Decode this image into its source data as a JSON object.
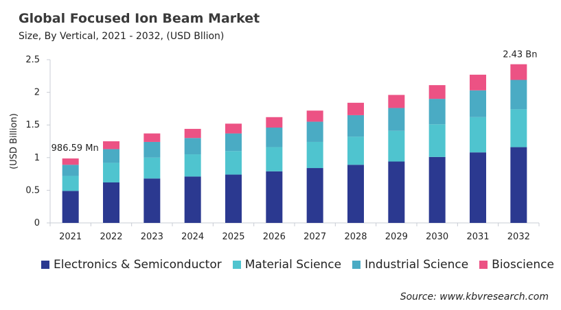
{
  "chart_data": {
    "type": "bar",
    "stacked": true,
    "title": "Global Focused Ion Beam Market",
    "subtitle": "Size, By Vertical, 2021 - 2032, (USD Bllion)",
    "xlabel": "",
    "ylabel": "(USD Billion)",
    "ylim": [
      0,
      2.5
    ],
    "yticks": [
      "0",
      "0.5",
      "1",
      "1.5",
      "2",
      "2.5"
    ],
    "grid": false,
    "legend_position": "bottom",
    "categories": [
      "2021",
      "2022",
      "2023",
      "2024",
      "2025",
      "2026",
      "2027",
      "2028",
      "2029",
      "2030",
      "2031",
      "2032"
    ],
    "series": [
      {
        "name": "Electronics & Semiconductor",
        "color": "#2b3990",
        "values": [
          0.49,
          0.62,
          0.68,
          0.71,
          0.74,
          0.79,
          0.84,
          0.89,
          0.94,
          1.01,
          1.08,
          1.16
        ]
      },
      {
        "name": "Material Science",
        "color": "#4fc4cf",
        "values": [
          0.23,
          0.3,
          0.32,
          0.34,
          0.36,
          0.37,
          0.4,
          0.43,
          0.47,
          0.5,
          0.54,
          0.58
        ]
      },
      {
        "name": "Industrial Science",
        "color": "#4aabc4",
        "values": [
          0.17,
          0.21,
          0.24,
          0.25,
          0.27,
          0.3,
          0.31,
          0.33,
          0.35,
          0.39,
          0.41,
          0.45
        ]
      },
      {
        "name": "Bioscience",
        "color": "#ec5284",
        "values": [
          0.097,
          0.12,
          0.13,
          0.14,
          0.15,
          0.16,
          0.17,
          0.19,
          0.2,
          0.21,
          0.24,
          0.24
        ]
      }
    ],
    "annotations": [
      {
        "category": "2021",
        "text": "986.59  Mn"
      },
      {
        "category": "2032",
        "text": "2.43 Bn"
      }
    ]
  },
  "source": "Source: www.kbvresearch.com"
}
